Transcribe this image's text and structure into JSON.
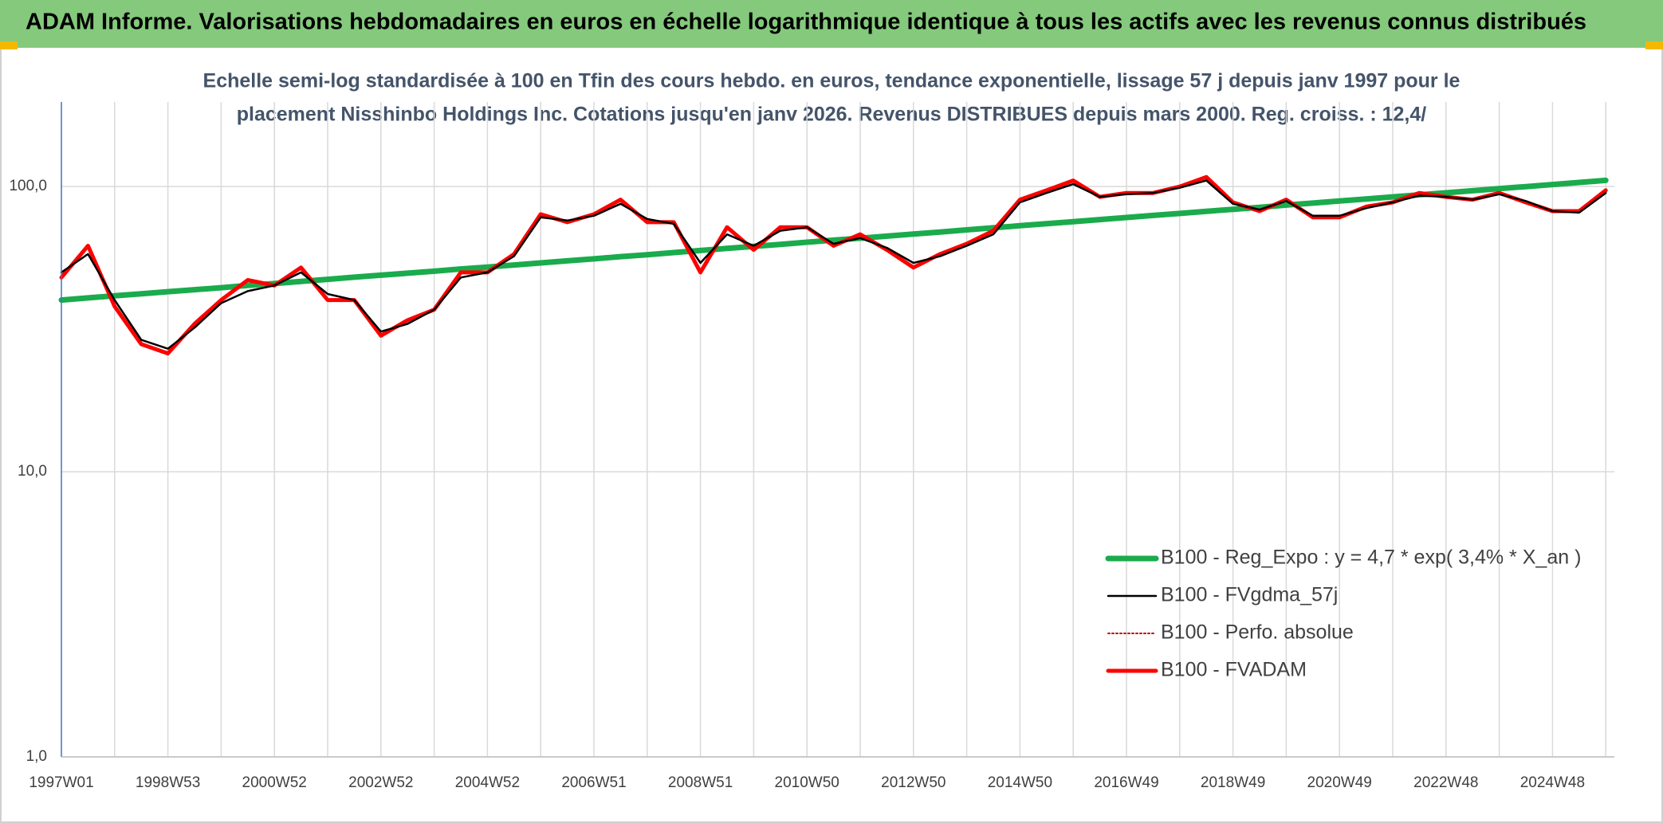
{
  "chart_data": {
    "type": "line",
    "title": "ADAM Informe. Valorisations hebdomadaires en euros en échelle logarithmique identique à tous les actifs avec les revenus connus distribués",
    "subtitle": [
      "Echelle semi-log standardisée à 100 en Tfin des cours hebdo. en euros, tendance exponentielle, lissage 57 j depuis janv 1997 pour le",
      "placement Nisshinbo Holdings Inc. Cotations jusqu'en janv 2026. Revenus DISTRIBUES depuis mars 2000. Reg. croiss. : 12,4/"
    ],
    "categories": [
      "1997W01",
      null,
      null,
      null,
      "1998W53",
      null,
      null,
      null,
      "2000W52",
      null,
      null,
      null,
      "2002W52",
      null,
      null,
      null,
      "2004W52",
      null,
      null,
      null,
      "2006W51",
      null,
      null,
      null,
      "2008W51",
      null,
      null,
      null,
      "2010W50",
      null,
      null,
      null,
      "2012W50",
      null,
      null,
      null,
      "2014W50",
      null,
      null,
      null,
      "2016W49",
      null,
      null,
      null,
      "2018W49",
      null,
      null,
      null,
      "2020W49",
      null,
      null,
      null,
      "2022W48",
      null,
      null,
      null,
      "2024W48",
      null,
      null
    ],
    "series": [
      {
        "name": "B100 - Reg_Expo : y = 4,7 * exp( 3,4% *  X_an )",
        "color": "#1aab4c",
        "style": "solid",
        "values": [
          40.0,
          40.7,
          41.4,
          42.1,
          42.8,
          43.5,
          44.2,
          45.0,
          45.7,
          46.5,
          47.3,
          48.1,
          48.9,
          49.7,
          50.5,
          51.4,
          52.2,
          53.1,
          54.0,
          54.9,
          55.8,
          56.8,
          57.7,
          58.7,
          59.7,
          60.7,
          61.7,
          62.7,
          63.8,
          64.9,
          65.9,
          67.0,
          68.2,
          69.3,
          70.5,
          71.7,
          72.9,
          74.1,
          75.3,
          76.6,
          77.9,
          79.2,
          80.5,
          81.9,
          83.2,
          84.6,
          86.1,
          87.5,
          89.0,
          90.5,
          92.0,
          93.6,
          95.1,
          96.7,
          98.4,
          100.0,
          101.7,
          103.4,
          105.1
        ]
      },
      {
        "name": "B100 - FVgdma_57j",
        "color": "#000000",
        "style": "solid",
        "values": [
          50,
          58,
          40,
          29,
          27,
          32,
          39,
          43,
          45,
          50,
          42,
          40,
          31,
          33,
          37,
          48,
          50,
          57,
          78,
          76,
          79,
          87,
          77,
          74,
          54,
          68,
          62,
          70,
          72,
          63,
          66,
          61,
          54,
          57,
          62,
          68,
          88,
          95,
          102,
          92,
          94,
          95,
          99,
          105,
          87,
          83,
          89,
          79,
          79,
          84,
          88,
          93,
          92,
          90,
          94,
          89,
          82,
          81,
          95
        ]
      },
      {
        "name": "B100 - Perfo. absolue",
        "color": "#c00000",
        "style": "dotted",
        "values": [
          48,
          62,
          38,
          28,
          26,
          33,
          40,
          47,
          45,
          52,
          40,
          40,
          30,
          34,
          37,
          50,
          50,
          58,
          80,
          75,
          80,
          90,
          75,
          75,
          50,
          72,
          60,
          72,
          72,
          62,
          68,
          60,
          52,
          58,
          63,
          70,
          90,
          97,
          105,
          92,
          95,
          95,
          100,
          108,
          88,
          82,
          90,
          78,
          78,
          85,
          88,
          95,
          92,
          90,
          95,
          88,
          82,
          82,
          97
        ]
      },
      {
        "name": "B100 - FVADAM",
        "color": "#ff0000",
        "style": "solid",
        "values": [
          48,
          62,
          38,
          28,
          26,
          33,
          40,
          47,
          45,
          52,
          40,
          40,
          30,
          34,
          37,
          50,
          50,
          58,
          80,
          75,
          80,
          90,
          75,
          75,
          50,
          72,
          60,
          72,
          72,
          62,
          68,
          60,
          52,
          58,
          63,
          70,
          90,
          97,
          105,
          92,
          95,
          95,
          100,
          108,
          88,
          82,
          90,
          78,
          78,
          85,
          88,
          95,
          92,
          90,
          95,
          88,
          82,
          82,
          97
        ]
      }
    ],
    "log_scale": true,
    "ylim": [
      1,
      198
    ],
    "yticks": [
      {
        "value": 1,
        "label": "1,0"
      },
      {
        "value": 10,
        "label": "10,0"
      },
      {
        "value": 100,
        "label": "100,0"
      }
    ],
    "grid": true,
    "legend": "bottom-right"
  }
}
